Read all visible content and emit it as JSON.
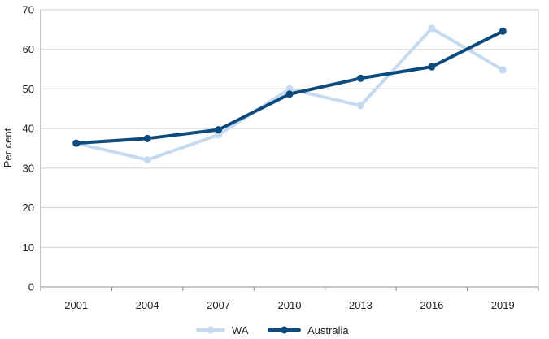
{
  "chart_data": {
    "type": "line",
    "title": "",
    "xlabel": "",
    "ylabel": "Per cent",
    "categories": [
      "2001",
      "2004",
      "2007",
      "2010",
      "2013",
      "2016",
      "2019"
    ],
    "ylim": [
      0,
      70
    ],
    "yticks": [
      0,
      10,
      20,
      30,
      40,
      50,
      60,
      70
    ],
    "grid": true,
    "legend": "bottom-center",
    "series": [
      {
        "name": "WA",
        "color": "#c5daf0",
        "values": [
          36.3,
          32.1,
          38.4,
          50.0,
          45.8,
          65.3,
          54.8
        ]
      },
      {
        "name": "Australia",
        "color": "#0d4a7d",
        "values": [
          36.3,
          37.5,
          39.7,
          48.7,
          52.7,
          55.6,
          64.6
        ]
      }
    ]
  }
}
